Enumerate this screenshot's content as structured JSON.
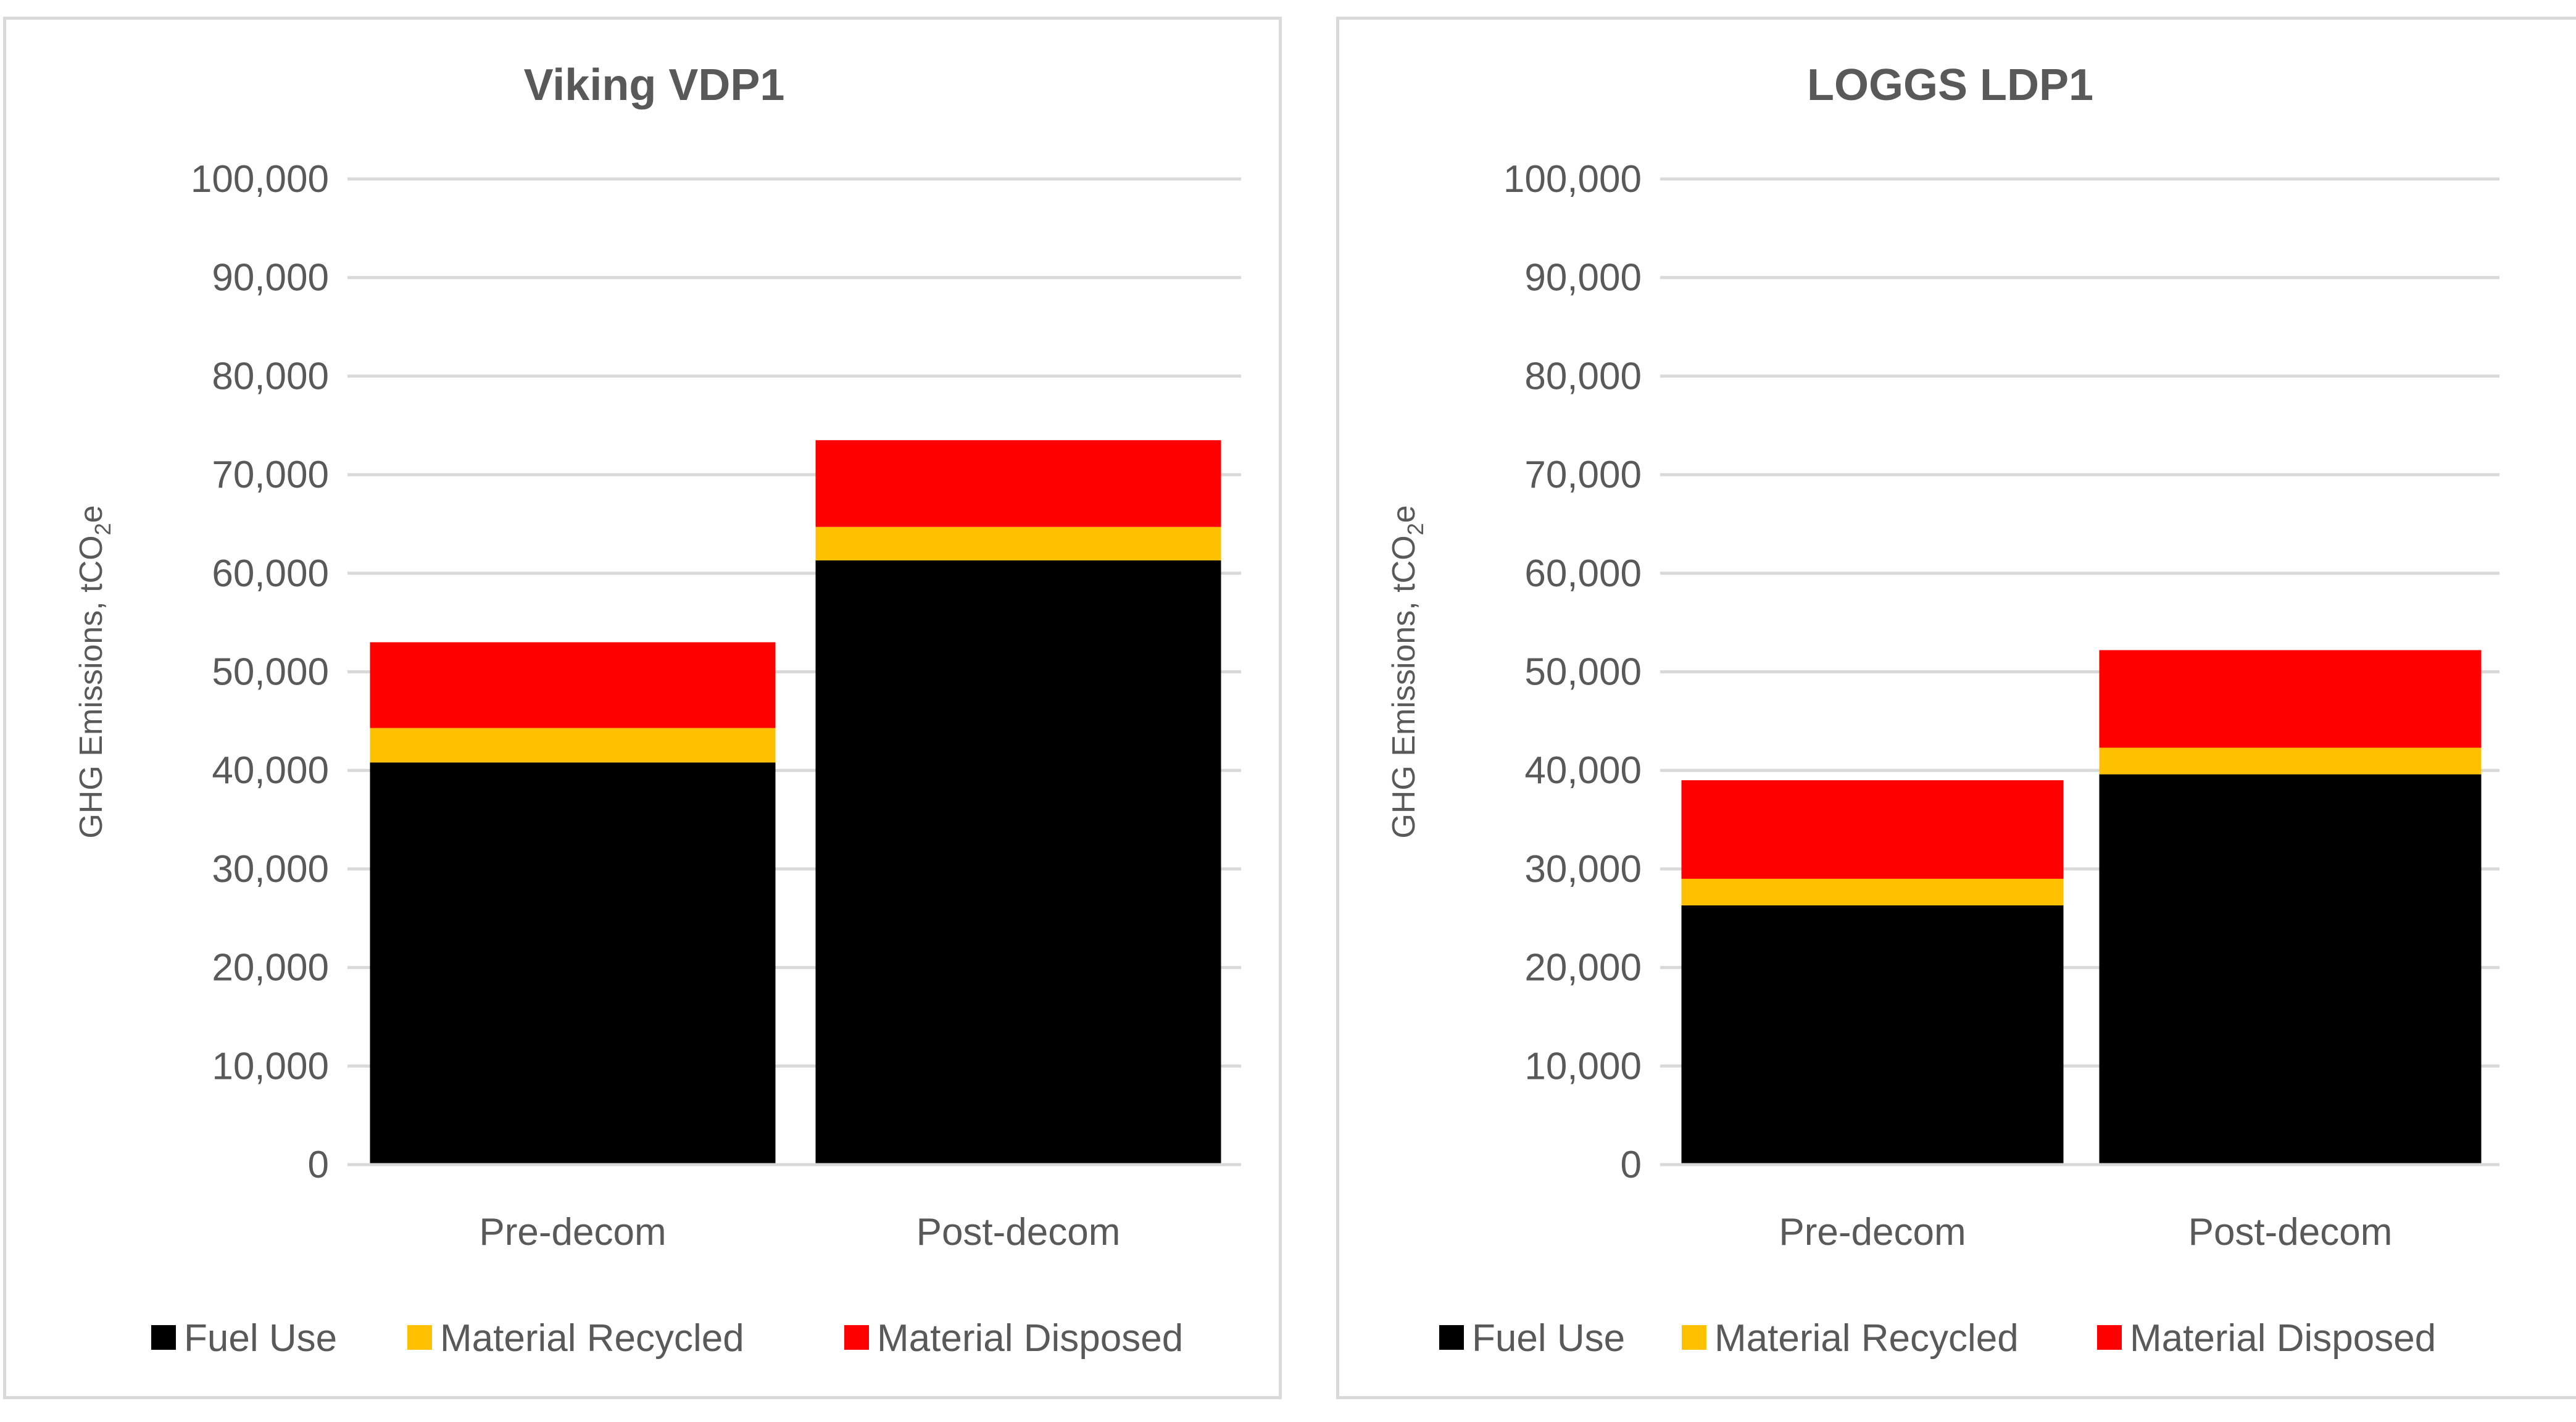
{
  "chart_data": [
    {
      "type": "bar",
      "stacked": true,
      "title": "Viking VDP1",
      "ylabel_main": "GHG Emissions, tCO",
      "ylabel_sub": "2",
      "ylabel_end": "e",
      "xlabel": "",
      "ylim": [
        0,
        100000
      ],
      "yticks": [
        0,
        10000,
        20000,
        30000,
        40000,
        50000,
        60000,
        70000,
        80000,
        90000,
        100000
      ],
      "ytick_labels": [
        "0",
        "10,000",
        "20,000",
        "30,000",
        "40,000",
        "50,000",
        "60,000",
        "70,000",
        "80,000",
        "90,000",
        "100,000"
      ],
      "categories": [
        "Pre-decom",
        "Post-decom"
      ],
      "series": [
        {
          "name": "Fuel Use",
          "color": "#000000",
          "values": [
            40800,
            61300
          ]
        },
        {
          "name": "Material Recycled",
          "color": "#ffc000",
          "values": [
            3500,
            3400
          ]
        },
        {
          "name": "Material Disposed",
          "color": "#ff0000",
          "values": [
            8700,
            8800
          ]
        }
      ],
      "legend_position": "bottom"
    },
    {
      "type": "bar",
      "stacked": true,
      "title": "LOGGS LDP1",
      "ylabel_main": "GHG Emissions, tCO",
      "ylabel_sub": "2",
      "ylabel_end": "e",
      "xlabel": "",
      "ylim": [
        0,
        100000
      ],
      "yticks": [
        0,
        10000,
        20000,
        30000,
        40000,
        50000,
        60000,
        70000,
        80000,
        90000,
        100000
      ],
      "ytick_labels": [
        "0",
        "10,000",
        "20,000",
        "30,000",
        "40,000",
        "50,000",
        "60,000",
        "70,000",
        "80,000",
        "90,000",
        "100,000"
      ],
      "categories": [
        "Pre-decom",
        "Post-decom"
      ],
      "series": [
        {
          "name": "Fuel Use",
          "color": "#000000",
          "values": [
            26300,
            39600
          ]
        },
        {
          "name": "Material Recycled",
          "color": "#ffc000",
          "values": [
            2700,
            2700
          ]
        },
        {
          "name": "Material Disposed",
          "color": "#ff0000",
          "values": [
            10000,
            9900
          ]
        }
      ],
      "legend_position": "bottom"
    }
  ]
}
